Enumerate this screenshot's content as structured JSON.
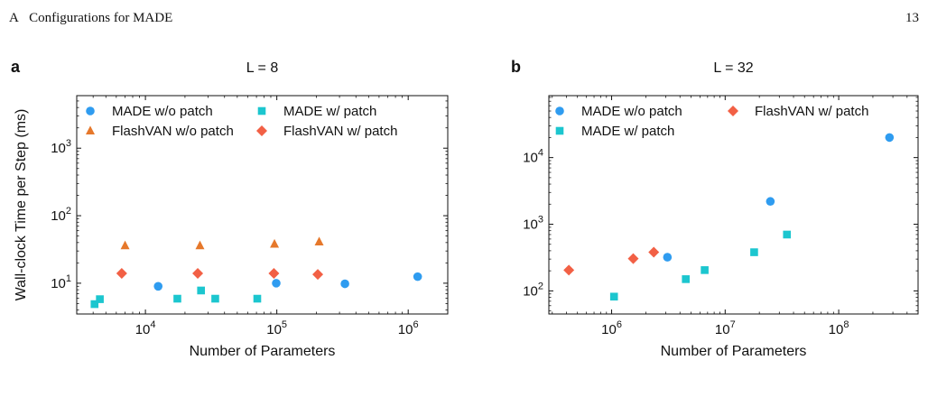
{
  "page": {
    "section_label": "A",
    "section_title": "Configurations for MADE",
    "page_number": "13"
  },
  "colors": {
    "made_wo_patch": "#2f9cf0",
    "flashvan_wo_patch": "#e6782b",
    "made_w_patch": "#1cc6cf",
    "flashvan_w_patch": "#f26045"
  },
  "chart_data": [
    {
      "type": "scatter",
      "panel_label": "a",
      "title": "L = 8",
      "xlabel": "Number of Parameters",
      "ylabel": "Wall-clock Time per Step (ms)",
      "xscale": "log",
      "yscale": "log",
      "xlim": [
        3000,
        2000000
      ],
      "ylim": [
        3.5,
        6000
      ],
      "xticks": [
        10000,
        100000,
        1000000
      ],
      "xtick_labels": [
        "10^4",
        "10^5",
        "10^6"
      ],
      "yticks": [
        10,
        100,
        1000
      ],
      "ytick_labels": [
        "10^1",
        "10^2",
        "10^3"
      ],
      "grid": false,
      "legend_placement": "top",
      "series": [
        {
          "name": "MADE w/o patch",
          "marker": "circle",
          "color": "#2f9cf0",
          "points": [
            [
              12500,
              9
            ],
            [
              99000,
              10
            ],
            [
              330000,
              9.8
            ],
            [
              1180000,
              12.5
            ]
          ]
        },
        {
          "name": "FlashVAN w/o patch",
          "marker": "triangle",
          "color": "#e6782b",
          "points": [
            [
              7000,
              36
            ],
            [
              26000,
              36
            ],
            [
              96000,
              38
            ],
            [
              210000,
              41
            ]
          ]
        },
        {
          "name": "MADE w/ patch",
          "marker": "square",
          "color": "#1cc6cf",
          "points": [
            [
              4100,
              4.9
            ],
            [
              4500,
              5.8
            ],
            [
              17500,
              5.9
            ],
            [
              26500,
              7.8
            ],
            [
              34000,
              5.9
            ],
            [
              71000,
              5.9
            ]
          ]
        },
        {
          "name": "FlashVAN w/ patch",
          "marker": "diamond",
          "color": "#f26045",
          "points": [
            [
              6600,
              14
            ],
            [
              25000,
              14
            ],
            [
              95000,
              14
            ],
            [
              205000,
              13.5
            ]
          ]
        }
      ],
      "legend_order": [
        "MADE w/o patch",
        "MADE w/ patch",
        "FlashVAN w/o patch",
        "FlashVAN w/ patch"
      ]
    },
    {
      "type": "scatter",
      "panel_label": "b",
      "title": "L = 32",
      "xlabel": "Number of Parameters",
      "ylabel": "",
      "xscale": "log",
      "yscale": "log",
      "xlim": [
        280000,
        500000000
      ],
      "ylim": [
        45,
        85000
      ],
      "xticks": [
        1000000,
        10000000,
        100000000
      ],
      "xtick_labels": [
        "10^6",
        "10^7",
        "10^8"
      ],
      "yticks": [
        100,
        1000,
        10000
      ],
      "ytick_labels": [
        "10^2",
        "10^3",
        "10^4"
      ],
      "grid": false,
      "legend_placement": "top-left",
      "series": [
        {
          "name": "MADE w/o patch",
          "marker": "circle",
          "color": "#2f9cf0",
          "points": [
            [
              3100000,
              320
            ],
            [
              25000000,
              2200
            ],
            [
              280000000,
              20000
            ]
          ]
        },
        {
          "name": "MADE w/ patch",
          "marker": "square",
          "color": "#1cc6cf",
          "points": [
            [
              1050000,
              82
            ],
            [
              4500000,
              150
            ],
            [
              6600000,
              205
            ],
            [
              18000000,
              380
            ],
            [
              35000000,
              700
            ]
          ]
        },
        {
          "name": "FlashVAN w/ patch",
          "marker": "diamond",
          "color": "#f26045",
          "points": [
            [
              420000,
              205
            ],
            [
              1550000,
              305
            ],
            [
              2350000,
              380
            ]
          ]
        }
      ],
      "legend_order": [
        "MADE w/o patch",
        "FlashVAN w/ patch",
        "MADE w/ patch"
      ]
    }
  ]
}
